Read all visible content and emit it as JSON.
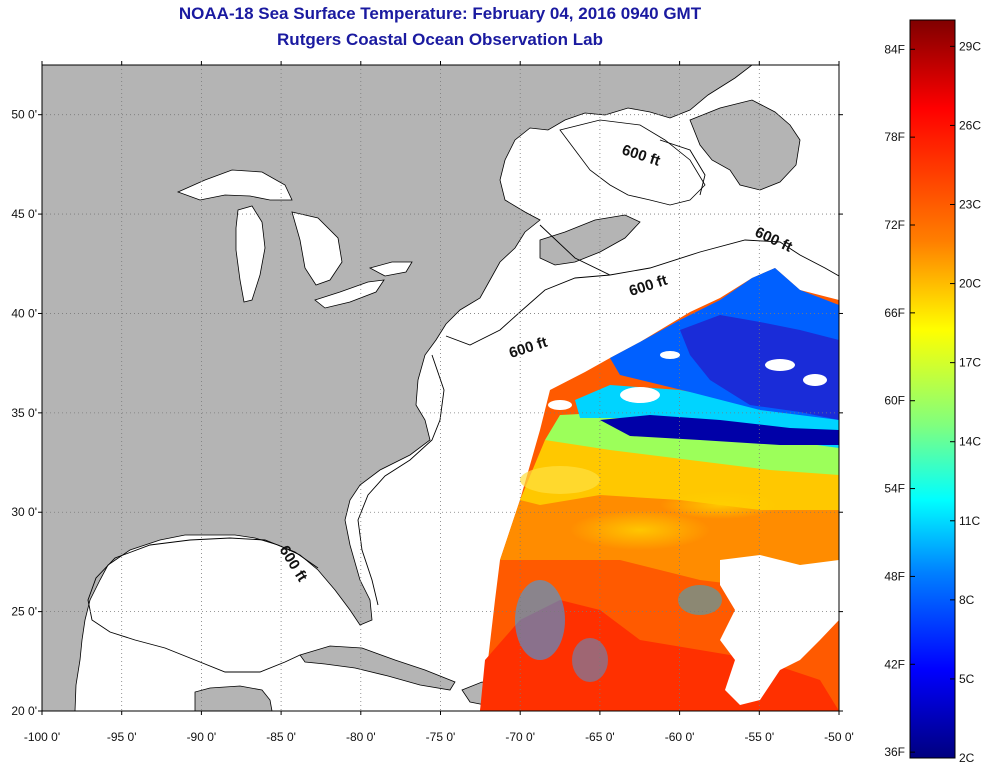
{
  "header": {
    "title": "NOAA-18 Sea Surface Temperature:  February 04, 2016 0940 GMT",
    "subtitle": "Rutgers Coastal Ocean Observation Lab"
  },
  "map": {
    "lon_range": [
      -100,
      -50
    ],
    "lat_range": [
      20,
      52.5
    ],
    "lon_ticks": [
      "-100 0'",
      "-95 0'",
      "-90 0'",
      "-85 0'",
      "-80 0'",
      "-75 0'",
      "-70 0'",
      "-65 0'",
      "-60 0'",
      "-55 0'",
      "-50 0'"
    ],
    "lat_ticks": [
      "50 0'",
      "45 0'",
      "40 0'",
      "35 0'",
      "30 0'",
      "25 0'",
      "20 0'"
    ],
    "grid": "dotted",
    "contour_label": "600 ft",
    "land_color": "#b4b4b4",
    "water_color": "#ffffff"
  },
  "colorbar": {
    "celsius_labels": [
      "29C",
      "26C",
      "23C",
      "20C",
      "17C",
      "14C",
      "11C",
      "8C",
      "5C",
      "2C"
    ],
    "fahrenheit_labels": [
      "84F",
      "78F",
      "72F",
      "66F",
      "60F",
      "54F",
      "48F",
      "42F",
      "36F"
    ],
    "colors": [
      "#7f0000",
      "#ff0000",
      "#ff7f00",
      "#ffff00",
      "#7fff7f",
      "#00ffff",
      "#007fff",
      "#0000ff",
      "#00007f"
    ]
  }
}
